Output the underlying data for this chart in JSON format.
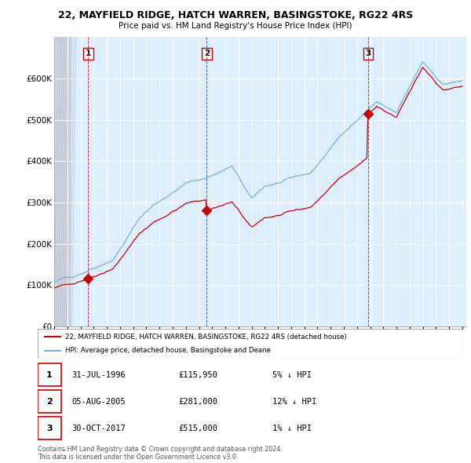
{
  "title_line1": "22, MAYFIELD RIDGE, HATCH WARREN, BASINGSTOKE, RG22 4RS",
  "title_line2": "Price paid vs. HM Land Registry's House Price Index (HPI)",
  "sale_dates_year": [
    1996.583,
    2005.583,
    2017.833
  ],
  "sale_prices": [
    115950,
    281000,
    515000
  ],
  "sale_labels": [
    "1",
    "2",
    "3"
  ],
  "legend_red": "22, MAYFIELD RIDGE, HATCH WARREN, BASINGSTOKE, RG22 4RS (detached house)",
  "legend_blue": "HPI: Average price, detached house, Basingstoke and Deane",
  "table_rows": [
    [
      "1",
      "31-JUL-1996",
      "£115,950",
      "5% ↓ HPI"
    ],
    [
      "2",
      "05-AUG-2005",
      "£281,000",
      "12% ↓ HPI"
    ],
    [
      "3",
      "30-OCT-2017",
      "£515,000",
      "1% ↓ HPI"
    ]
  ],
  "footnote": "Contains HM Land Registry data © Crown copyright and database right 2024.\nThis data is licensed under the Open Government Licence v3.0.",
  "ylim": [
    0,
    700000
  ],
  "yticks": [
    0,
    100000,
    200000,
    300000,
    400000,
    500000,
    600000
  ],
  "ytick_labels": [
    "£0",
    "£100K",
    "£200K",
    "£300K",
    "£400K",
    "£500K",
    "£600K"
  ],
  "red_color": "#cc0000",
  "blue_color": "#7aafd4",
  "chart_bg": "#ddeeff",
  "grid_color": "#aaccee",
  "hatch_color": "#bbbbcc"
}
